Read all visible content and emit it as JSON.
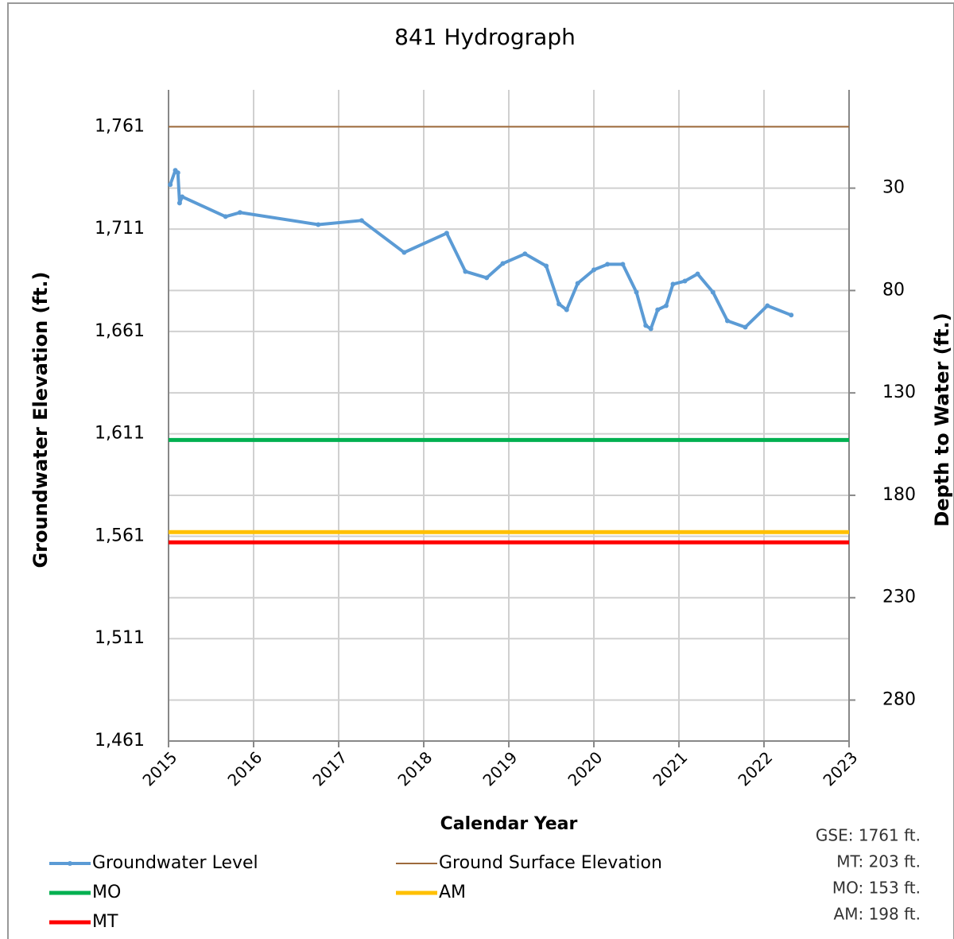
{
  "chart_data": {
    "type": "line",
    "title": "841 Hydrograph",
    "x_label": "Calendar Year",
    "y_label": "Groundwater Elevation (ft.)",
    "y2_label": "Depth to Water (ft.)",
    "xlim": [
      2015,
      2023
    ],
    "xticks": [
      2015,
      2016,
      2017,
      2018,
      2019,
      2020,
      2021,
      2022,
      2023
    ],
    "ylim": [
      1461,
      1779
    ],
    "yticks": [
      {
        "value": 1461,
        "label": "1,461"
      },
      {
        "value": 1511,
        "label": "1,511"
      },
      {
        "value": 1561,
        "label": "1,561"
      },
      {
        "value": 1611,
        "label": "1,611"
      },
      {
        "value": 1661,
        "label": "1,661"
      },
      {
        "value": 1711,
        "label": "1,711"
      },
      {
        "value": 1761,
        "label": "1,761"
      }
    ],
    "y2lim": [
      300,
      -18
    ],
    "y2ticks": [
      30,
      80,
      130,
      180,
      230,
      280
    ],
    "grid": true,
    "series": [
      {
        "name": "Groundwater Level",
        "color": "#5b9bd5",
        "markers": true,
        "x": [
          2015.02,
          2015.08,
          2015.11,
          2015.13,
          2015.16,
          2015.67,
          2015.84,
          2016.76,
          2017.27,
          2017.77,
          2018.27,
          2018.49,
          2018.74,
          2018.93,
          2019.19,
          2019.44,
          2019.59,
          2019.68,
          2019.81,
          2020.0,
          2020.16,
          2020.34,
          2020.5,
          2020.61,
          2020.67,
          2020.75,
          2020.85,
          2020.93,
          2021.07,
          2021.22,
          2021.4,
          2021.57,
          2021.78,
          2022.04,
          2022.32
        ],
        "values": [
          1732.7,
          1739.7,
          1738.5,
          1723.7,
          1726.8,
          1717.1,
          1719.1,
          1713.2,
          1715.2,
          1699.6,
          1709.0,
          1690.3,
          1687.2,
          1694.2,
          1698.9,
          1693.0,
          1674.4,
          1671.6,
          1684.5,
          1691.1,
          1693.8,
          1693.8,
          1680.2,
          1663.9,
          1662.3,
          1671.6,
          1673.6,
          1684.1,
          1685.6,
          1689.1,
          1680.2,
          1666.2,
          1663.1,
          1673.6,
          1669.0
        ]
      },
      {
        "name": "Ground Surface Elevation",
        "color": "#9e6a3b",
        "width": 2,
        "x": [
          2015,
          2023
        ],
        "values": [
          1761,
          1761
        ]
      },
      {
        "name": "MO",
        "color": "#00b050",
        "width": 5,
        "x": [
          2015,
          2023
        ],
        "values": [
          1608,
          1608
        ]
      },
      {
        "name": "AM",
        "color": "#ffc000",
        "width": 5,
        "x": [
          2015,
          2023
        ],
        "values": [
          1563,
          1563
        ]
      },
      {
        "name": "MT",
        "color": "#ff0000",
        "width": 5,
        "x": [
          2015,
          2023
        ],
        "values": [
          1558,
          1558
        ]
      }
    ],
    "annotations": [
      "GSE: 1761 ft.",
      "MT: 203 ft.",
      "MO: 153 ft.",
      "AM: 198 ft."
    ]
  }
}
